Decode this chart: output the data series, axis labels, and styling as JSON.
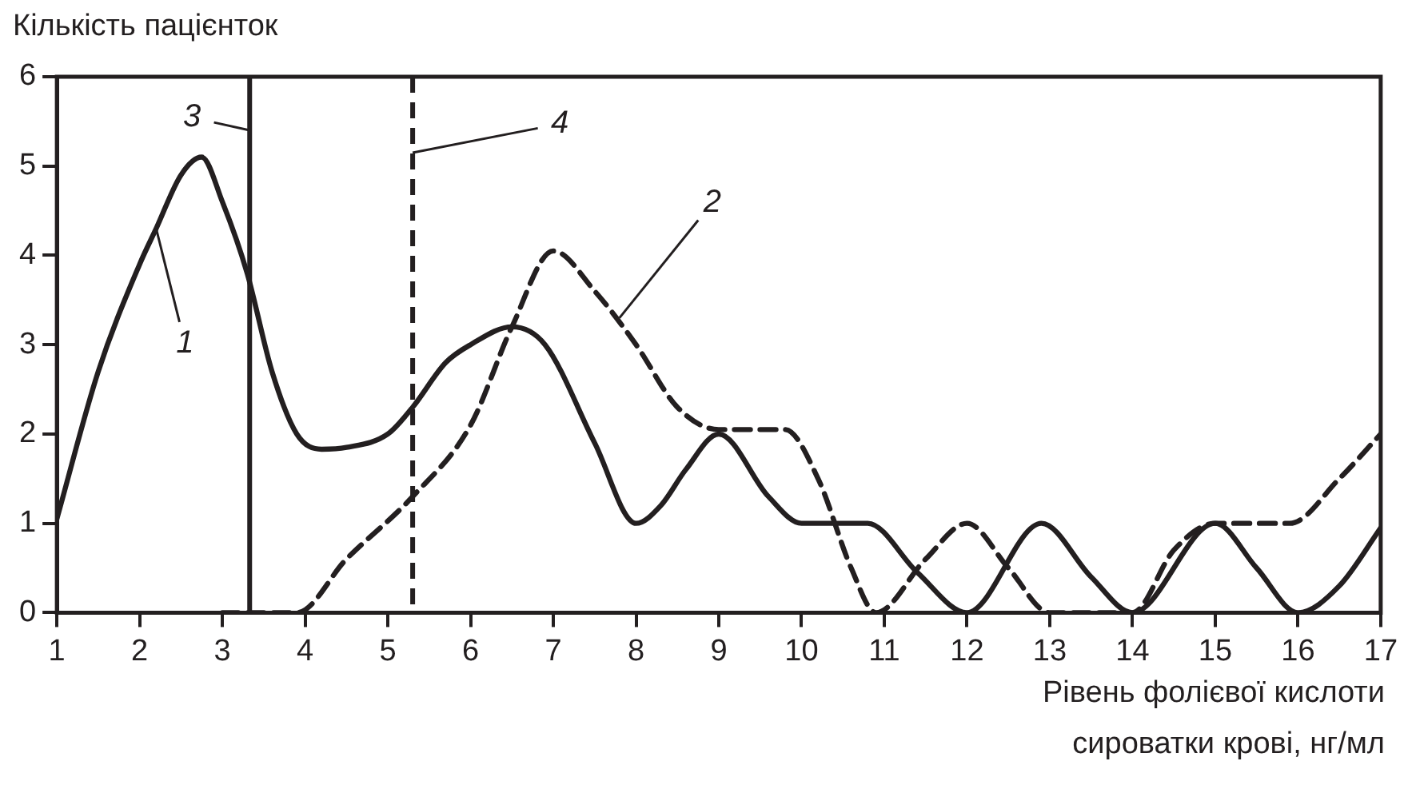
{
  "chart_data": {
    "type": "line",
    "xlabel": "Рівень фолієвої кислоти\nсироватки крові, нг/мл",
    "ylabel": "Кількість пацієнток",
    "xlim": [
      1,
      17
    ],
    "xticks": [
      1,
      2,
      3,
      4,
      5,
      6,
      7,
      8,
      9,
      10,
      11,
      12,
      13,
      14,
      15,
      16,
      17
    ],
    "ylim": [
      0,
      6
    ],
    "yticks": [
      0,
      1,
      2,
      3,
      4,
      5,
      6
    ],
    "grid": false,
    "legend": false,
    "marker": "none",
    "series": [
      {
        "color": "#231f20",
        "line_style": "solid",
        "x": [
          1,
          1.5,
          2,
          2.2,
          2.5,
          2.75,
          3,
          3.3,
          3.6,
          3.9,
          4.2,
          4.5,
          5,
          5.3,
          5.7,
          6,
          6.5,
          6.9,
          7.5,
          8,
          8.3,
          8.6,
          9,
          9.6,
          10,
          10.5,
          10.8,
          11.4,
          12,
          12.9,
          13.5,
          14,
          15,
          15.5,
          16,
          16.5,
          17
        ],
        "values": [
          1.05,
          2.7,
          3.9,
          4.3,
          4.9,
          5.1,
          4.6,
          3.8,
          2.7,
          2.0,
          1.83,
          1.85,
          2.0,
          2.3,
          2.8,
          3.0,
          3.2,
          3.0,
          1.9,
          1.0,
          1.2,
          1.6,
          2.0,
          1.3,
          1.0,
          1.0,
          1.0,
          0.45,
          0,
          1.0,
          0.4,
          0,
          1.0,
          0.5,
          0,
          0.3,
          0.95
        ]
      },
      {
        "color": "#231f20",
        "line_style": "dashed",
        "x": [
          3,
          3.9,
          4.5,
          5.3,
          6,
          6.5,
          7,
          7.5,
          8,
          8.5,
          9,
          9.8,
          10.2,
          10.6,
          10.9,
          11.5,
          12,
          12.5,
          13,
          13.5,
          14,
          14.5,
          15,
          15.9,
          16.5,
          17
        ],
        "values": [
          0,
          0,
          0.6,
          1.3,
          2.1,
          3.2,
          4.05,
          3.6,
          3.0,
          2.3,
          2.05,
          2.05,
          1.5,
          0.5,
          0,
          0.6,
          1.0,
          0.5,
          0,
          0,
          0,
          0.7,
          1.0,
          1.0,
          1.5,
          2.0
        ]
      }
    ],
    "ref_lines": [
      {
        "axis": "x",
        "value": 3.33,
        "color": "#231f20",
        "line_style": "solid"
      },
      {
        "axis": "x",
        "value": 5.3,
        "color": "#231f20",
        "line_style": "dashed"
      }
    ],
    "annotations": [
      {
        "text": "1",
        "x": 2.2,
        "y": 4.3
      },
      {
        "text": "2",
        "x": 7.8,
        "y": 3.3
      },
      {
        "text": "3",
        "x": 3.33,
        "y": 5.4
      },
      {
        "text": "4",
        "x": 5.3,
        "y": 5.15
      }
    ]
  }
}
